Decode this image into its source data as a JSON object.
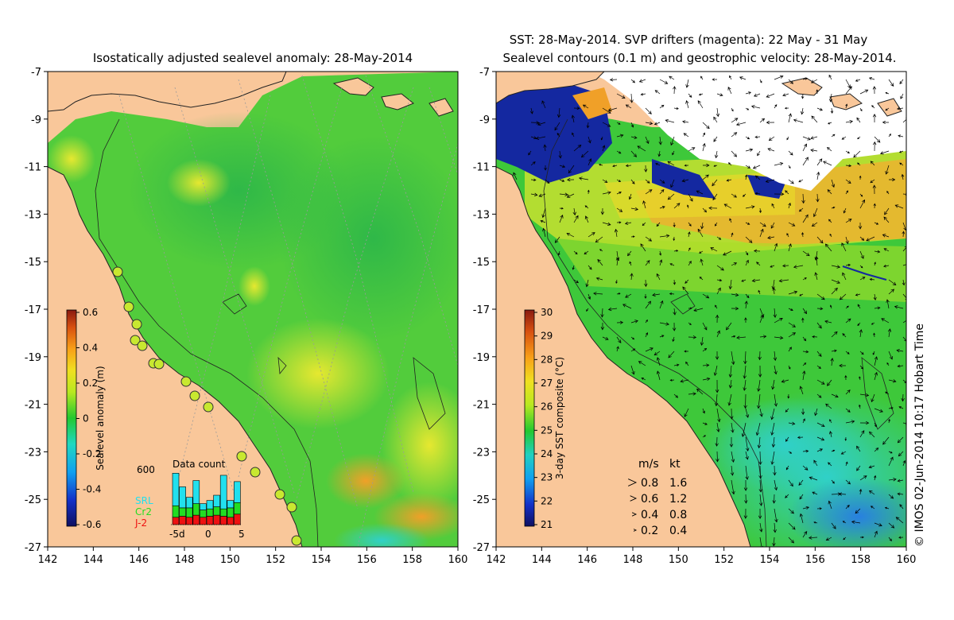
{
  "left_panel": {
    "title": "Isostatically adjusted sealevel anomaly: 28-May-2014",
    "x_ticks": [
      "142",
      "144",
      "146",
      "148",
      "150",
      "152",
      "154",
      "156",
      "158",
      "160"
    ],
    "y_ticks": [
      "-7",
      "-9",
      "-11",
      "-13",
      "-15",
      "-17",
      "-19",
      "-21",
      "-23",
      "-25",
      "-27"
    ],
    "colorbar": {
      "label": "Sealevel anomaly (m)",
      "ticks": [
        "0.6",
        "0.4",
        "0.2",
        "0",
        "-0.2",
        "-0.4",
        "-0.6"
      ],
      "range": [
        -0.6,
        0.6
      ]
    },
    "data_count": {
      "title": "Data count",
      "y_max_label": "600",
      "x_labels": [
        "-5d",
        "0",
        "5"
      ],
      "legend": [
        {
          "label": "SRL",
          "color": "#22e0ee"
        },
        {
          "label": "Cr2",
          "color": "#22dd22"
        },
        {
          "label": "J-2",
          "color": "#ee1111"
        }
      ],
      "bars": [
        {
          "j2": 0.14,
          "cr2": 0.22,
          "srl": 0.62
        },
        {
          "j2": 0.16,
          "cr2": 0.16,
          "srl": 0.4
        },
        {
          "j2": 0.14,
          "cr2": 0.18,
          "srl": 0.2
        },
        {
          "j2": 0.18,
          "cr2": 0.22,
          "srl": 0.44
        },
        {
          "j2": 0.14,
          "cr2": 0.14,
          "srl": 0.12
        },
        {
          "j2": 0.16,
          "cr2": 0.14,
          "srl": 0.16
        },
        {
          "j2": 0.18,
          "cr2": 0.16,
          "srl": 0.22
        },
        {
          "j2": 0.16,
          "cr2": 0.14,
          "srl": 0.64
        },
        {
          "j2": 0.14,
          "cr2": 0.18,
          "srl": 0.14
        },
        {
          "j2": 0.2,
          "cr2": 0.22,
          "srl": 0.4
        }
      ]
    }
  },
  "right_panel": {
    "title_line1": "SST: 28-May-2014. SVP drifters (magenta): 22 May - 31 May",
    "title_line2": "Sealevel contours (0.1 m) and geostrophic velocity: 28-May-2014.",
    "x_ticks": [
      "142",
      "144",
      "146",
      "148",
      "150",
      "152",
      "154",
      "156",
      "158",
      "160"
    ],
    "y_ticks": [
      "-7",
      "-9",
      "-11",
      "-13",
      "-15",
      "-17",
      "-19",
      "-21",
      "-23",
      "-25",
      "-27"
    ],
    "colorbar": {
      "label": "3-day SST composite (°C)",
      "ticks": [
        "30",
        "29",
        "28",
        "27",
        "26",
        "25",
        "24",
        "23",
        "22",
        "21"
      ],
      "range": [
        21,
        30
      ]
    },
    "velocity_legend": {
      "header_ms": "m/s",
      "header_kt": "kt",
      "rows": [
        {
          "ms": "0.8",
          "kt": "1.6",
          "length": 28
        },
        {
          "ms": "0.6",
          "kt": "1.2",
          "length": 21
        },
        {
          "ms": "0.4",
          "kt": "0.8",
          "length": 14
        },
        {
          "ms": "0.2",
          "kt": "0.4",
          "length": 7
        }
      ]
    }
  },
  "credit": "© IMOS 02-Jun-2014 10:17 Hobart Time",
  "colors": {
    "land": "#f9c79a",
    "coast": "#222222",
    "cloud": "#ffffff"
  }
}
